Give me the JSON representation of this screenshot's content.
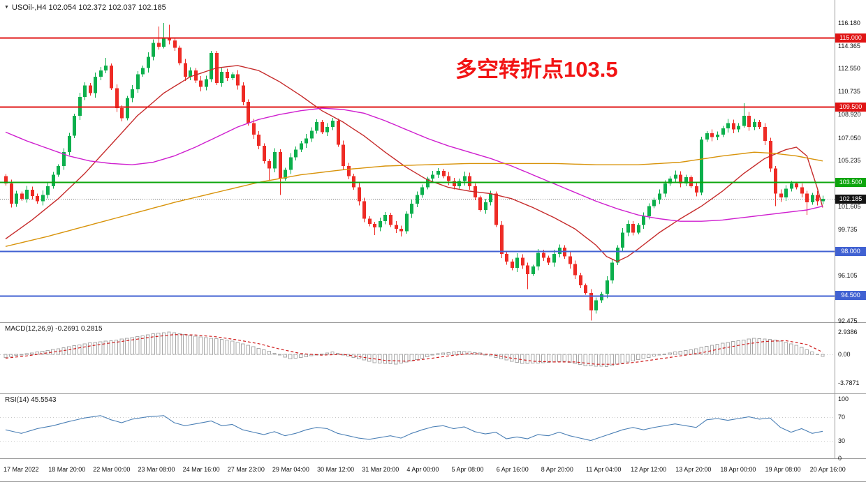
{
  "window": {
    "title": "USOil-,H4 102.054 102.372 102.037 102.185"
  },
  "icons": {
    "dropdown": "▼"
  },
  "annotation": {
    "text": "多空转折点103.5",
    "color": "#f21414"
  },
  "indicators": {
    "macd_label": "MACD(12,26,9) -0.2691 0.2815",
    "rsi_label": "RSI(14) 45.5543"
  },
  "axes": {
    "price_ticks": [
      116.18,
      114.365,
      112.55,
      110.735,
      108.92,
      107.05,
      105.235,
      101.605,
      99.735,
      96.105,
      92.475
    ],
    "macd_ticks": [
      {
        "v": 2.9386,
        "t": "2.9386"
      },
      {
        "v": 0,
        "t": "0.00"
      },
      {
        "v": -3.7871,
        "t": "-3.7871"
      }
    ],
    "rsi_ticks": [
      {
        "v": 100,
        "t": "100"
      },
      {
        "v": 70,
        "t": "70"
      },
      {
        "v": 30,
        "t": "30"
      },
      {
        "v": 0,
        "t": "0"
      }
    ],
    "dates": [
      "17 Mar 2022",
      "18 Mar 20:00",
      "22 Mar 00:00",
      "23 Mar 08:00",
      "24 Mar 16:00",
      "27 Mar 23:00",
      "29 Mar 04:00",
      "30 Mar 12:00",
      "31 Mar 20:00",
      "4 Apr 00:00",
      "5 Apr 08:00",
      "6 Apr 16:00",
      "8 Apr 20:00",
      "11 Apr 04:00",
      "12 Apr 12:00",
      "13 Apr 20:00",
      "18 Apr 00:00",
      "19 Apr 08:00",
      "20 Apr 16:00"
    ]
  },
  "levels": [
    {
      "price": 115.0,
      "label": "115.000",
      "color": "#e01414",
      "style": "solid"
    },
    {
      "price": 109.5,
      "label": "109.500",
      "color": "#e01414",
      "style": "solid"
    },
    {
      "price": 103.5,
      "label": "103.500",
      "color": "#0da50d",
      "style": "solid"
    },
    {
      "price": 102.185,
      "label": "102.185",
      "color": "#141414",
      "style": "dotted"
    },
    {
      "price": 98.0,
      "label": "98.000",
      "color": "#4061d2",
      "style": "solid"
    },
    {
      "price": 94.5,
      "label": "94.500",
      "color": "#4061d2",
      "style": "solid"
    }
  ],
  "colors": {
    "bull": "#0caf4c",
    "bear": "#ee2b25",
    "histogram": "#a8a8a8",
    "macd_signal": "#cf1d1d",
    "rsi_line": "#4a7fb5"
  },
  "chart_data": {
    "type": "candlestick",
    "symbol": "USOil-",
    "timeframe": "H4",
    "current_ohlc": {
      "open": 102.054,
      "high": 102.372,
      "low": 102.037,
      "close": 102.185
    },
    "price_min": 92.475,
    "price_max": 116.18,
    "first_open": 104.0,
    "closes": [
      103.4,
      101.8,
      102.6,
      102.2,
      102.9,
      102.4,
      102.0,
      102.5,
      103.2,
      104.1,
      104.8,
      105.9,
      107.2,
      108.8,
      110.3,
      111.2,
      110.6,
      111.9,
      112.4,
      112.8,
      111.0,
      109.4,
      108.6,
      110.2,
      110.9,
      112.1,
      112.6,
      113.5,
      114.6,
      114.3,
      115.0,
      114.8,
      114.2,
      113.0,
      111.9,
      112.4,
      111.6,
      111.1,
      111.7,
      113.8,
      111.4,
      112.3,
      111.8,
      112.1,
      111.2,
      109.9,
      108.2,
      107.3,
      106.4,
      105.2,
      104.6,
      105.9,
      103.8,
      104.5,
      105.5,
      106.1,
      106.6,
      107.0,
      107.6,
      108.3,
      107.5,
      107.9,
      108.4,
      106.5,
      104.8,
      104.0,
      103.1,
      102.0,
      100.6,
      100.2,
      99.9,
      100.4,
      100.9,
      100.1,
      99.8,
      99.6,
      101.0,
      101.8,
      102.5,
      103.1,
      103.8,
      104.1,
      104.4,
      104.0,
      103.6,
      103.2,
      103.6,
      104.0,
      103.2,
      102.3,
      101.3,
      101.9,
      102.6,
      100.1,
      97.8,
      97.2,
      96.7,
      97.5,
      96.9,
      96.2,
      96.8,
      97.9,
      97.5,
      97.1,
      97.8,
      98.3,
      97.6,
      97.0,
      96.1,
      95.3,
      94.7,
      93.3,
      94.1,
      94.6,
      95.7,
      97.1,
      98.3,
      99.5,
      100.2,
      99.5,
      100.1,
      100.8,
      101.6,
      102.1,
      102.6,
      103.4,
      103.8,
      104.1,
      103.4,
      103.9,
      103.2,
      102.7,
      106.9,
      107.4,
      107.1,
      107.3,
      107.8,
      108.2,
      107.7,
      108.0,
      108.8,
      107.9,
      108.3,
      107.9,
      106.8,
      104.6,
      102.6,
      102.3,
      103.0,
      103.4,
      103.1,
      102.6,
      101.9,
      102.5,
      102.0,
      102.185
    ],
    "wick_overrides": {
      "19": {
        "h": 113.4
      },
      "29": {
        "h": 115.9
      },
      "30": {
        "h": 116.18
      },
      "31": {
        "h": 116.05
      },
      "39": {
        "h": 113.97
      },
      "50": {
        "l": 103.6
      },
      "52": {
        "l": 102.5
      },
      "70": {
        "l": 99.3
      },
      "75": {
        "l": 99.2
      },
      "99": {
        "l": 95.0
      },
      "111": {
        "l": 92.5
      },
      "140": {
        "h": 109.8
      },
      "146": {
        "l": 101.6
      },
      "152": {
        "l": 100.9
      }
    },
    "moving_averages": [
      {
        "name": "mid-red",
        "color": "#c62b2b",
        "points": [
          [
            0,
            99.0
          ],
          [
            5,
            100.5
          ],
          [
            10,
            102.2
          ],
          [
            15,
            104.2
          ],
          [
            20,
            106.5
          ],
          [
            25,
            108.8
          ],
          [
            30,
            110.6
          ],
          [
            35,
            111.9
          ],
          [
            40,
            112.6
          ],
          [
            44,
            112.8
          ],
          [
            48,
            112.4
          ],
          [
            52,
            111.5
          ],
          [
            56,
            110.4
          ],
          [
            60,
            109.2
          ],
          [
            64,
            108.3
          ],
          [
            68,
            107.2
          ],
          [
            72,
            105.9
          ],
          [
            76,
            104.7
          ],
          [
            80,
            103.7
          ],
          [
            84,
            103.1
          ],
          [
            88,
            102.8
          ],
          [
            92,
            102.6
          ],
          [
            96,
            102.2
          ],
          [
            100,
            101.5
          ],
          [
            104,
            100.7
          ],
          [
            108,
            99.8
          ],
          [
            112,
            98.5
          ],
          [
            114,
            97.6
          ],
          [
            116,
            97.2
          ],
          [
            118,
            97.6
          ],
          [
            120,
            98.2
          ],
          [
            124,
            99.5
          ],
          [
            128,
            100.6
          ],
          [
            132,
            101.6
          ],
          [
            136,
            102.8
          ],
          [
            140,
            104.2
          ],
          [
            144,
            105.4
          ],
          [
            148,
            106.1
          ],
          [
            150,
            106.3
          ],
          [
            152,
            105.6
          ],
          [
            154,
            103.0
          ],
          [
            155,
            101.5
          ]
        ]
      },
      {
        "name": "magenta",
        "color": "#cf1fcf",
        "points": [
          [
            0,
            107.5
          ],
          [
            4,
            106.8
          ],
          [
            8,
            106.2
          ],
          [
            12,
            105.6
          ],
          [
            16,
            105.2
          ],
          [
            20,
            105.0
          ],
          [
            24,
            104.9
          ],
          [
            28,
            105.1
          ],
          [
            32,
            105.6
          ],
          [
            36,
            106.3
          ],
          [
            40,
            107.1
          ],
          [
            44,
            107.9
          ],
          [
            48,
            108.5
          ],
          [
            52,
            108.9
          ],
          [
            56,
            109.2
          ],
          [
            60,
            109.4
          ],
          [
            64,
            109.3
          ],
          [
            68,
            109.0
          ],
          [
            72,
            108.4
          ],
          [
            76,
            107.7
          ],
          [
            80,
            107.0
          ],
          [
            84,
            106.4
          ],
          [
            88,
            105.9
          ],
          [
            92,
            105.4
          ],
          [
            96,
            104.8
          ],
          [
            100,
            104.1
          ],
          [
            104,
            103.4
          ],
          [
            108,
            102.7
          ],
          [
            112,
            102.0
          ],
          [
            116,
            101.4
          ],
          [
            120,
            100.9
          ],
          [
            124,
            100.6
          ],
          [
            128,
            100.4
          ],
          [
            132,
            100.4
          ],
          [
            136,
            100.5
          ],
          [
            140,
            100.7
          ],
          [
            144,
            100.9
          ],
          [
            148,
            101.1
          ],
          [
            152,
            101.3
          ],
          [
            155,
            101.6
          ]
        ]
      },
      {
        "name": "orange",
        "color": "#d8930a",
        "points": [
          [
            0,
            98.4
          ],
          [
            8,
            99.2
          ],
          [
            16,
            100.1
          ],
          [
            24,
            101.0
          ],
          [
            32,
            101.9
          ],
          [
            40,
            102.7
          ],
          [
            48,
            103.5
          ],
          [
            56,
            104.1
          ],
          [
            64,
            104.5
          ],
          [
            72,
            104.8
          ],
          [
            80,
            104.9
          ],
          [
            88,
            105.0
          ],
          [
            96,
            105.0
          ],
          [
            104,
            105.0
          ],
          [
            112,
            104.9
          ],
          [
            120,
            104.9
          ],
          [
            128,
            105.1
          ],
          [
            136,
            105.6
          ],
          [
            142,
            105.9
          ],
          [
            146,
            105.8
          ],
          [
            150,
            105.6
          ],
          [
            155,
            105.2
          ]
        ]
      }
    ],
    "macd": {
      "current_main": -0.2691,
      "current_signal": 0.2815,
      "range": [
        -3.7871,
        2.9386
      ],
      "main_points": [
        [
          0,
          -0.4
        ],
        [
          4,
          0.1
        ],
        [
          8,
          0.5
        ],
        [
          12,
          1.0
        ],
        [
          16,
          1.5
        ],
        [
          20,
          1.8
        ],
        [
          24,
          2.2
        ],
        [
          28,
          2.7
        ],
        [
          31,
          2.94
        ],
        [
          34,
          2.6
        ],
        [
          38,
          2.2
        ],
        [
          42,
          1.9
        ],
        [
          46,
          1.2
        ],
        [
          50,
          0.4
        ],
        [
          54,
          -0.6
        ],
        [
          58,
          -0.2
        ],
        [
          62,
          0.3
        ],
        [
          66,
          -0.4
        ],
        [
          70,
          -1.1
        ],
        [
          74,
          -1.3
        ],
        [
          78,
          -0.7
        ],
        [
          82,
          0.1
        ],
        [
          86,
          0.4
        ],
        [
          90,
          0.2
        ],
        [
          94,
          -0.6
        ],
        [
          98,
          -1.2
        ],
        [
          102,
          -1.1
        ],
        [
          106,
          -0.9
        ],
        [
          110,
          -1.5
        ],
        [
          114,
          -1.6
        ],
        [
          118,
          -1.0
        ],
        [
          122,
          -0.4
        ],
        [
          126,
          0.2
        ],
        [
          130,
          0.6
        ],
        [
          134,
          1.2
        ],
        [
          138,
          1.7
        ],
        [
          142,
          2.1
        ],
        [
          146,
          1.9
        ],
        [
          150,
          1.2
        ],
        [
          153,
          0.3
        ],
        [
          155,
          -0.2691
        ]
      ],
      "signal_points": [
        [
          0,
          -0.5
        ],
        [
          4,
          -0.2
        ],
        [
          8,
          0.2
        ],
        [
          12,
          0.6
        ],
        [
          16,
          1.1
        ],
        [
          20,
          1.5
        ],
        [
          24,
          1.9
        ],
        [
          28,
          2.3
        ],
        [
          32,
          2.6
        ],
        [
          36,
          2.55
        ],
        [
          40,
          2.3
        ],
        [
          44,
          1.9
        ],
        [
          48,
          1.4
        ],
        [
          52,
          0.7
        ],
        [
          56,
          0.1
        ],
        [
          60,
          -0.1
        ],
        [
          64,
          0.0
        ],
        [
          68,
          -0.4
        ],
        [
          72,
          -0.8
        ],
        [
          76,
          -0.9
        ],
        [
          80,
          -0.6
        ],
        [
          84,
          -0.2
        ],
        [
          88,
          0.1
        ],
        [
          92,
          0.0
        ],
        [
          96,
          -0.5
        ],
        [
          100,
          -0.9
        ],
        [
          104,
          -1.0
        ],
        [
          108,
          -1.0
        ],
        [
          112,
          -1.3
        ],
        [
          116,
          -1.3
        ],
        [
          120,
          -1.0
        ],
        [
          124,
          -0.6
        ],
        [
          128,
          -0.2
        ],
        [
          132,
          0.2
        ],
        [
          136,
          0.8
        ],
        [
          140,
          1.3
        ],
        [
          144,
          1.7
        ],
        [
          148,
          1.8
        ],
        [
          152,
          1.3
        ],
        [
          155,
          0.2815
        ]
      ]
    },
    "rsi": {
      "period": 14,
      "current": 45.5543,
      "levels": [
        70,
        30
      ],
      "points": [
        [
          0,
          48
        ],
        [
          3,
          42
        ],
        [
          6,
          50
        ],
        [
          9,
          55
        ],
        [
          12,
          62
        ],
        [
          15,
          68
        ],
        [
          18,
          72
        ],
        [
          20,
          65
        ],
        [
          22,
          60
        ],
        [
          24,
          66
        ],
        [
          27,
          70
        ],
        [
          30,
          72
        ],
        [
          32,
          60
        ],
        [
          34,
          55
        ],
        [
          36,
          58
        ],
        [
          39,
          63
        ],
        [
          41,
          55
        ],
        [
          43,
          57
        ],
        [
          45,
          48
        ],
        [
          47,
          44
        ],
        [
          49,
          40
        ],
        [
          51,
          45
        ],
        [
          53,
          38
        ],
        [
          55,
          42
        ],
        [
          57,
          48
        ],
        [
          59,
          52
        ],
        [
          61,
          50
        ],
        [
          63,
          42
        ],
        [
          65,
          38
        ],
        [
          67,
          34
        ],
        [
          69,
          32
        ],
        [
          71,
          35
        ],
        [
          73,
          38
        ],
        [
          75,
          34
        ],
        [
          77,
          42
        ],
        [
          79,
          48
        ],
        [
          81,
          53
        ],
        [
          83,
          55
        ],
        [
          85,
          50
        ],
        [
          87,
          53
        ],
        [
          89,
          45
        ],
        [
          91,
          41
        ],
        [
          93,
          44
        ],
        [
          95,
          33
        ],
        [
          97,
          36
        ],
        [
          99,
          33
        ],
        [
          101,
          40
        ],
        [
          103,
          38
        ],
        [
          105,
          44
        ],
        [
          107,
          38
        ],
        [
          109,
          34
        ],
        [
          111,
          30
        ],
        [
          113,
          36
        ],
        [
          115,
          42
        ],
        [
          117,
          48
        ],
        [
          119,
          52
        ],
        [
          121,
          48
        ],
        [
          123,
          52
        ],
        [
          125,
          55
        ],
        [
          127,
          58
        ],
        [
          129,
          55
        ],
        [
          131,
          52
        ],
        [
          133,
          65
        ],
        [
          135,
          67
        ],
        [
          137,
          64
        ],
        [
          139,
          67
        ],
        [
          141,
          70
        ],
        [
          143,
          66
        ],
        [
          145,
          68
        ],
        [
          147,
          52
        ],
        [
          149,
          44
        ],
        [
          151,
          50
        ],
        [
          153,
          42
        ],
        [
          155,
          45.55
        ]
      ]
    }
  }
}
